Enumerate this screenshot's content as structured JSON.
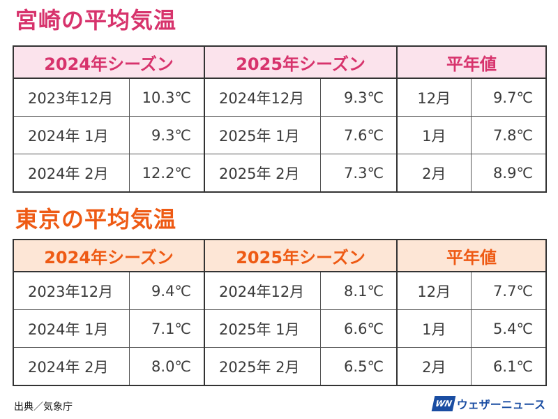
{
  "colors": {
    "miyazaki_accent": "#d7336c",
    "miyazaki_header_bg": "#fbe3ec",
    "tokyo_accent": "#ee5a14",
    "tokyo_header_bg": "#fde6d6",
    "border": "#333333",
    "brand_blue": "#1a4da2"
  },
  "miyazaki": {
    "title": "宮崎の平均気温",
    "headers": [
      "2024年シーズン",
      "2025年シーズン",
      "平年値"
    ],
    "rows": [
      {
        "s2024_period": "2023年12月",
        "s2024_temp": "10.3℃",
        "s2025_period": "2024年12月",
        "s2025_temp": "9.3℃",
        "normal_month": "12月",
        "normal_temp": "9.7℃"
      },
      {
        "s2024_period": "2024年  1月",
        "s2024_temp": "9.3℃",
        "s2025_period": "2025年  1月",
        "s2025_temp": "7.6℃",
        "normal_month": "1月",
        "normal_temp": "7.8℃"
      },
      {
        "s2024_period": "2024年  2月",
        "s2024_temp": "12.2℃",
        "s2025_period": "2025年  2月",
        "s2025_temp": "7.3℃",
        "normal_month": "2月",
        "normal_temp": "8.9℃"
      }
    ]
  },
  "tokyo": {
    "title": "東京の平均気温",
    "headers": [
      "2024年シーズン",
      "2025年シーズン",
      "平年値"
    ],
    "rows": [
      {
        "s2024_period": "2023年12月",
        "s2024_temp": "9.4℃",
        "s2025_period": "2024年12月",
        "s2025_temp": "8.1℃",
        "normal_month": "12月",
        "normal_temp": "7.7℃"
      },
      {
        "s2024_period": "2024年  1月",
        "s2024_temp": "7.1℃",
        "s2025_period": "2025年  1月",
        "s2025_temp": "6.6℃",
        "normal_month": "1月",
        "normal_temp": "5.4℃"
      },
      {
        "s2024_period": "2024年  2月",
        "s2024_temp": "8.0℃",
        "s2025_period": "2025年  2月",
        "s2025_temp": "6.5℃",
        "normal_month": "2月",
        "normal_temp": "6.1℃"
      }
    ]
  },
  "footer": {
    "source": "出典／気象庁",
    "brand_logo_text": "WN",
    "brand_name": "ウェザーニュース"
  }
}
